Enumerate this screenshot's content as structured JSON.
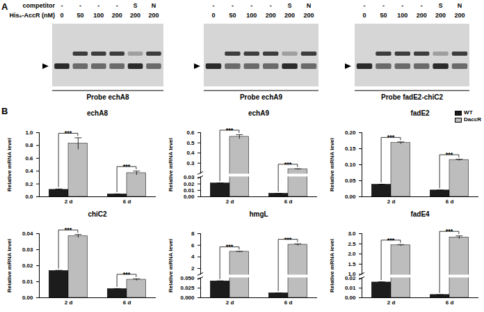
{
  "panel_a": {
    "label": "A",
    "row_labels": [
      "competitor",
      "His₆-AccR (nM)"
    ],
    "competitor": [
      "-",
      "-",
      "-",
      "-",
      "S",
      "N"
    ],
    "his_nM": [
      0,
      50,
      100,
      200,
      200,
      200
    ],
    "probes": [
      "Probe echA8",
      "Probe echA9",
      "Probe fadE2-chiC2"
    ]
  },
  "panel_b_label": "B",
  "chart_data": [
    {
      "type": "bar",
      "title": "echA8",
      "ylabel": "Relative mRNA level",
      "categories": [
        "2 d",
        "6 d"
      ],
      "series": [
        {
          "name": "WT",
          "color": "#1c1c1c",
          "values": [
            0.11,
            0.04
          ],
          "errors": [
            0.012,
            0.004
          ]
        },
        {
          "name": "DaccR",
          "color": "#bdbdbd",
          "values": [
            0.83,
            0.37
          ],
          "errors": [
            0.09,
            0.03
          ]
        }
      ],
      "ylim": [
        0,
        1.0
      ],
      "yticks": [
        {
          "value": 0,
          "label": "0.0"
        },
        0.2,
        0.4,
        0.6,
        0.8,
        {
          "value": 1.0,
          "label": "1.0"
        }
      ],
      "significance": [
        "***",
        "***"
      ]
    },
    {
      "type": "bar",
      "title": "echA9",
      "ylabel": "Relative mRNA level",
      "categories": [
        "2 d",
        "6 d"
      ],
      "series": [
        {
          "name": "WT",
          "color": "#1c1c1c",
          "values": [
            0.021,
            0.005
          ],
          "errors": [
            0.0005,
            0.0003
          ]
        },
        {
          "name": "DaccR",
          "color": "#bdbdbd",
          "values": [
            0.56,
            0.24
          ],
          "errors": [
            0.02,
            0.005
          ]
        }
      ],
      "ylim": [
        0,
        0.6
      ],
      "ybreak": [
        0.03,
        0.2
      ],
      "yticks": [
        {
          "value": 0,
          "label": "0.00"
        },
        0.01,
        0.02,
        0.03,
        0.3,
        0.4,
        0.5,
        0.6
      ],
      "significance": [
        "***",
        "***"
      ]
    },
    {
      "type": "bar",
      "title": "fadE2",
      "ylabel": "Relative mRNA level",
      "categories": [
        "2 d",
        "6 d"
      ],
      "series": [
        {
          "name": "WT",
          "color": "#1c1c1c",
          "values": [
            0.038,
            0.02
          ],
          "errors": [
            0.001,
            0.0008
          ]
        },
        {
          "name": "DaccR",
          "color": "#bdbdbd",
          "values": [
            0.168,
            0.115
          ],
          "errors": [
            0.003,
            0.002
          ]
        }
      ],
      "ylim": [
        0,
        0.2
      ],
      "yticks": [
        {
          "value": 0,
          "label": "0.00"
        },
        0.05,
        {
          "value": 0.1,
          "label": "0.10"
        },
        0.15,
        {
          "value": 0.2,
          "label": "0.20"
        }
      ],
      "legend": "top-right",
      "significance": [
        "***",
        "***"
      ]
    },
    {
      "type": "bar",
      "title": "chiC2",
      "ylabel": "Relative mRNA level",
      "categories": [
        "2 d",
        "6 d"
      ],
      "series": [
        {
          "name": "WT",
          "color": "#1c1c1c",
          "values": [
            0.0168,
            0.0055
          ],
          "errors": [
            0.0003,
            0.0002
          ]
        },
        {
          "name": "DaccR",
          "color": "#bdbdbd",
          "values": [
            0.0385,
            0.0113
          ],
          "errors": [
            0.001,
            0.0005
          ]
        }
      ],
      "ylim": [
        0,
        0.04
      ],
      "yticks": [
        {
          "value": 0,
          "label": "0.00"
        },
        0.01,
        0.02,
        0.03,
        0.04
      ],
      "significance": [
        "***",
        "***"
      ]
    },
    {
      "type": "bar",
      "title": "hmgL",
      "ylabel": "Relative mRNA level",
      "categories": [
        "2 d",
        "6 d"
      ],
      "series": [
        {
          "name": "WT",
          "color": "#1c1c1c",
          "values": [
            0.043,
            0.012
          ],
          "errors": [
            0.001,
            0.0005
          ]
        },
        {
          "name": "DaccR",
          "color": "#bdbdbd",
          "values": [
            4.9,
            6.1
          ],
          "errors": [
            0.05,
            0.15
          ]
        }
      ],
      "ylim": [
        0,
        8
      ],
      "ybreak": [
        0.05,
        1
      ],
      "yticks": [
        {
          "value": 0,
          "label": "0.000"
        },
        0.025,
        {
          "value": 0.05,
          "label": "0.050"
        },
        2,
        4,
        6,
        8
      ],
      "significance": [
        "***",
        "***"
      ]
    },
    {
      "type": "bar",
      "title": "fadE4",
      "ylabel": "Relative mRNA level",
      "categories": [
        "2 d",
        "6 d"
      ],
      "series": [
        {
          "name": "WT",
          "color": "#1c1c1c",
          "values": [
            0.016,
            0.003
          ],
          "errors": [
            0.0005,
            0.0002
          ]
        },
        {
          "name": "DaccR",
          "color": "#bdbdbd",
          "values": [
            2.43,
            2.82
          ],
          "errors": [
            0.03,
            0.07
          ]
        }
      ],
      "ylim": [
        0,
        3.0
      ],
      "ybreak": [
        0.02,
        1.0
      ],
      "yticks": [
        {
          "value": 0,
          "label": "0.00"
        },
        0.01,
        0.02,
        {
          "value": 1.0,
          "label": "1.0"
        },
        1.5,
        {
          "value": 2.0,
          "label": "2.0"
        },
        2.5,
        {
          "value": 3.0,
          "label": "3.0"
        }
      ],
      "significance": [
        "***",
        "***"
      ]
    }
  ]
}
